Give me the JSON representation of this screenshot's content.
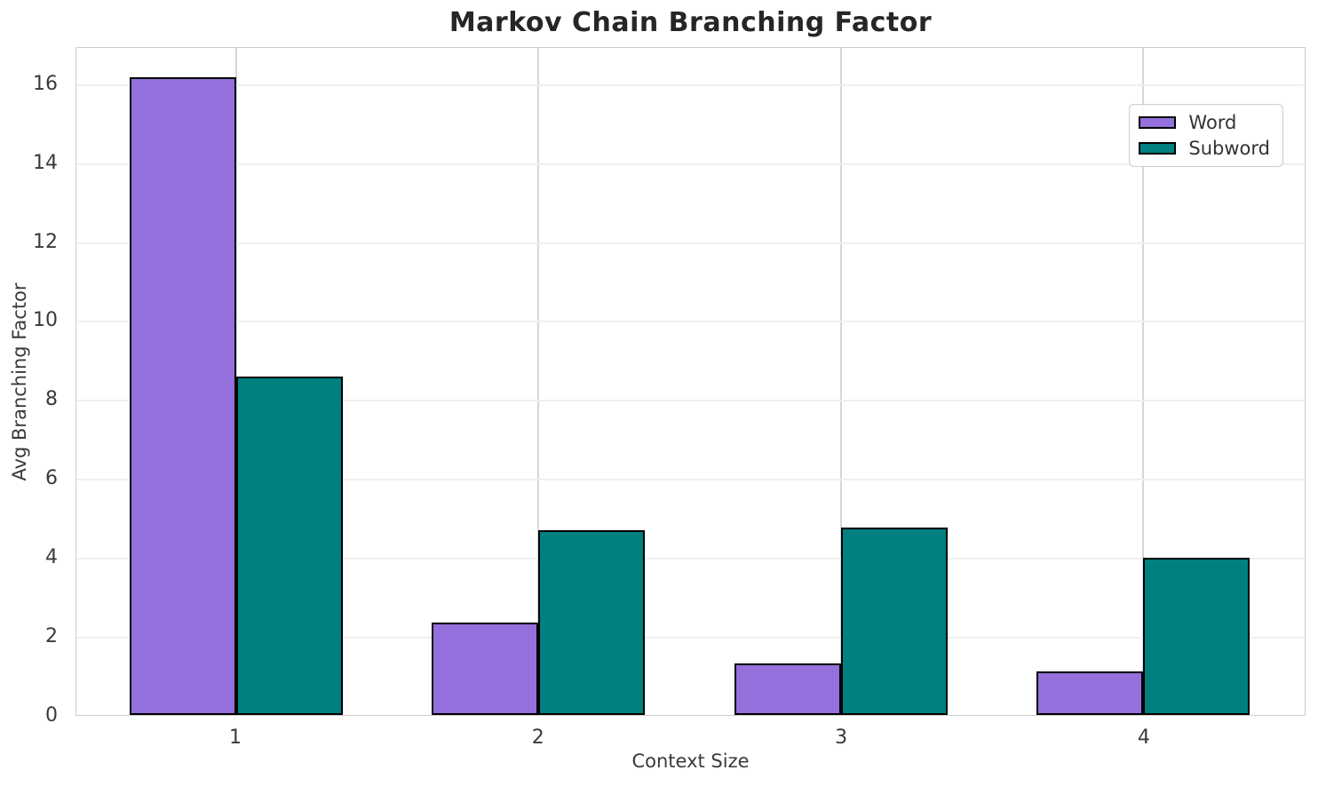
{
  "chart_data": {
    "type": "bar",
    "title": "Markov Chain Branching Factor",
    "xlabel": "Context Size",
    "ylabel": "Avg Branching Factor",
    "categories": [
      "1",
      "2",
      "3",
      "4"
    ],
    "series": [
      {
        "name": "Word",
        "color": "#9370DB",
        "values": [
          16.2,
          2.35,
          1.3,
          1.1
        ]
      },
      {
        "name": "Subword",
        "color": "#008080",
        "values": [
          8.6,
          4.7,
          4.75,
          4.0
        ]
      }
    ],
    "yticks": [
      0,
      2,
      4,
      6,
      8,
      10,
      12,
      14,
      16
    ],
    "ylim": [
      0,
      16.94
    ],
    "grid": true,
    "legend_position": "upper right",
    "bar_edge_color": "#000000",
    "colors": {
      "title_text": "#262626",
      "tick_text": "#3a3a3a",
      "spine": "#cccccc",
      "gridline_h": "#efefef",
      "gridline_v": "#d6d6d6"
    }
  }
}
